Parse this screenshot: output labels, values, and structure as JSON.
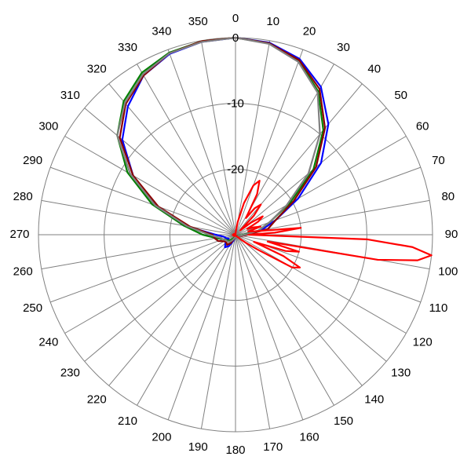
{
  "chart_data": {
    "type": "polar-line",
    "title": "",
    "angle_unit": "degrees",
    "angle_direction": "clockwise",
    "zero_direction": "top",
    "angle_ticks": [
      0,
      10,
      20,
      30,
      40,
      50,
      60,
      70,
      80,
      90,
      100,
      110,
      120,
      130,
      140,
      150,
      160,
      170,
      180,
      190,
      200,
      210,
      220,
      230,
      240,
      250,
      260,
      270,
      280,
      290,
      300,
      310,
      320,
      330,
      340,
      350
    ],
    "radial_range": [
      -30,
      0
    ],
    "radial_tick_labels": [
      {
        "value": 0,
        "label": "0"
      },
      {
        "value": -10,
        "label": "-10"
      },
      {
        "value": -20,
        "label": "-20"
      }
    ],
    "grid": true,
    "series": [
      {
        "color": "#0000ff",
        "points": [
          [
            0,
            0
          ],
          [
            10,
            -0.3
          ],
          [
            20,
            -1.5
          ],
          [
            30,
            -4.0
          ],
          [
            40,
            -8.0
          ],
          [
            50,
            -13.0
          ],
          [
            60,
            -19.0
          ],
          [
            70,
            -23.5
          ],
          [
            80,
            -26.0
          ],
          [
            90,
            -28.5
          ],
          [
            100,
            -29.2
          ],
          [
            110,
            -29.5
          ],
          [
            120,
            -29.6
          ],
          [
            130,
            -29.6
          ],
          [
            140,
            -29.6
          ],
          [
            150,
            -29.6
          ],
          [
            160,
            -29.6
          ],
          [
            170,
            -29.6
          ],
          [
            180,
            -29.7
          ],
          [
            190,
            -29.6
          ],
          [
            200,
            -29.0
          ],
          [
            210,
            -28.0
          ],
          [
            220,
            -27.5
          ],
          [
            230,
            -28.0
          ],
          [
            240,
            -28.8
          ],
          [
            250,
            -28.5
          ],
          [
            260,
            -28.2
          ],
          [
            270,
            -27.0
          ],
          [
            280,
            -22.0
          ],
          [
            290,
            -17.0
          ],
          [
            300,
            -12.0
          ],
          [
            310,
            -7.5
          ],
          [
            320,
            -4.5
          ],
          [
            330,
            -2.0
          ],
          [
            340,
            -0.7
          ],
          [
            350,
            -0.2
          ]
        ]
      },
      {
        "color": "#008000",
        "points": [
          [
            0,
            0
          ],
          [
            10,
            -0.4
          ],
          [
            20,
            -1.8
          ],
          [
            30,
            -4.8
          ],
          [
            40,
            -9.2
          ],
          [
            50,
            -14.5
          ],
          [
            60,
            -20.5
          ],
          [
            70,
            -24.5
          ],
          [
            80,
            -26.5
          ],
          [
            90,
            -28.8
          ],
          [
            100,
            -29.3
          ],
          [
            110,
            -29.6
          ],
          [
            120,
            -29.7
          ],
          [
            130,
            -29.7
          ],
          [
            140,
            -29.7
          ],
          [
            150,
            -29.7
          ],
          [
            160,
            -29.7
          ],
          [
            170,
            -29.7
          ],
          [
            180,
            -29.8
          ],
          [
            190,
            -29.7
          ],
          [
            200,
            -29.6
          ],
          [
            210,
            -29.4
          ],
          [
            220,
            -29.0
          ],
          [
            230,
            -28.6
          ],
          [
            240,
            -28.4
          ],
          [
            250,
            -28.0
          ],
          [
            260,
            -27.0
          ],
          [
            270,
            -25.0
          ],
          [
            280,
            -22.0
          ],
          [
            290,
            -16.5
          ],
          [
            300,
            -11.0
          ],
          [
            310,
            -6.5
          ],
          [
            320,
            -3.5
          ],
          [
            330,
            -1.5
          ],
          [
            340,
            -0.5
          ],
          [
            350,
            -0.1
          ]
        ]
      },
      {
        "color": "#8b0000",
        "points": [
          [
            0,
            0
          ],
          [
            10,
            -0.4
          ],
          [
            20,
            -1.7
          ],
          [
            30,
            -4.4
          ],
          [
            40,
            -8.8
          ],
          [
            50,
            -14.0
          ],
          [
            60,
            -19.8
          ],
          [
            70,
            -23.5
          ],
          [
            80,
            -25.0
          ],
          [
            90,
            -28.2
          ],
          [
            100,
            -29.0
          ],
          [
            110,
            -29.4
          ],
          [
            120,
            -29.6
          ],
          [
            130,
            -29.6
          ],
          [
            140,
            -29.6
          ],
          [
            150,
            -29.6
          ],
          [
            160,
            -29.6
          ],
          [
            170,
            -29.7
          ],
          [
            180,
            -29.7
          ],
          [
            190,
            -29.6
          ],
          [
            200,
            -29.3
          ],
          [
            210,
            -28.5
          ],
          [
            220,
            -28.0
          ],
          [
            230,
            -28.2
          ],
          [
            240,
            -28.0
          ],
          [
            250,
            -27.2
          ],
          [
            260,
            -26.8
          ],
          [
            270,
            -26.5
          ],
          [
            280,
            -23.0
          ],
          [
            290,
            -17.5
          ],
          [
            300,
            -12.0
          ],
          [
            310,
            -7.0
          ],
          [
            320,
            -4.0
          ],
          [
            330,
            -2.0
          ],
          [
            340,
            -0.6
          ],
          [
            350,
            -0.1
          ]
        ]
      },
      {
        "color": "#808080",
        "points": [
          [
            0,
            0
          ],
          [
            10,
            -0.5
          ],
          [
            20,
            -2.0
          ],
          [
            30,
            -5.0
          ],
          [
            40,
            -10.0
          ],
          [
            50,
            -15.5
          ],
          [
            60,
            -21.0
          ],
          [
            70,
            -24.5
          ],
          [
            80,
            -26.5
          ],
          [
            90,
            -28.6
          ],
          [
            100,
            -29.2
          ],
          [
            110,
            -29.5
          ],
          [
            120,
            -29.6
          ],
          [
            130,
            -29.6
          ],
          [
            140,
            -29.6
          ],
          [
            150,
            -29.6
          ],
          [
            160,
            -29.6
          ],
          [
            170,
            -29.6
          ],
          [
            180,
            -29.7
          ],
          [
            190,
            -29.6
          ],
          [
            200,
            -29.4
          ],
          [
            210,
            -29.0
          ],
          [
            220,
            -28.6
          ],
          [
            230,
            -28.4
          ],
          [
            240,
            -28.3
          ],
          [
            250,
            -28.0
          ],
          [
            260,
            -27.5
          ],
          [
            270,
            -26.0
          ],
          [
            280,
            -22.5
          ],
          [
            290,
            -17.0
          ],
          [
            300,
            -11.5
          ],
          [
            310,
            -6.5
          ],
          [
            320,
            -3.8
          ],
          [
            330,
            -1.8
          ],
          [
            340,
            -0.6
          ],
          [
            350,
            -0.2
          ]
        ]
      },
      {
        "color": "#ff0000",
        "points": [
          [
            0,
            -30
          ],
          [
            5,
            -29.5
          ],
          [
            10,
            -28
          ],
          [
            15,
            -25
          ],
          [
            20,
            -22
          ],
          [
            24,
            -21
          ],
          [
            28,
            -23
          ],
          [
            32,
            -27
          ],
          [
            36,
            -25
          ],
          [
            40,
            -24
          ],
          [
            44,
            -26
          ],
          [
            48,
            -29
          ],
          [
            52,
            -27
          ],
          [
            56,
            -25
          ],
          [
            60,
            -26
          ],
          [
            64,
            -28
          ],
          [
            68,
            -27
          ],
          [
            72,
            -26
          ],
          [
            76,
            -28
          ],
          [
            80,
            -27
          ],
          [
            84,
            -20
          ],
          [
            87,
            -24
          ],
          [
            90,
            -28
          ],
          [
            92,
            -10
          ],
          [
            94,
            -3
          ],
          [
            96,
            0
          ],
          [
            98,
            -2
          ],
          [
            100,
            -8
          ],
          [
            102,
            -25
          ],
          [
            105,
            -20
          ],
          [
            108,
            -22
          ],
          [
            111,
            -27
          ],
          [
            114,
            -22
          ],
          [
            117,
            -19
          ],
          [
            120,
            -20
          ],
          [
            124,
            -26
          ],
          [
            128,
            -28
          ],
          [
            132,
            -29
          ],
          [
            136,
            -29.5
          ],
          [
            140,
            -29.6
          ],
          [
            150,
            -29.8
          ],
          [
            160,
            -29.8
          ],
          [
            170,
            -29.9
          ],
          [
            180,
            -29.9
          ],
          [
            190,
            -29.9
          ],
          [
            200,
            -29.9
          ],
          [
            210,
            -29.8
          ],
          [
            220,
            -29.8
          ],
          [
            230,
            -29.7
          ],
          [
            240,
            -29.7
          ],
          [
            250,
            -29.7
          ],
          [
            260,
            -29.6
          ],
          [
            270,
            -29.6
          ],
          [
            280,
            -29.7
          ],
          [
            290,
            -29.7
          ],
          [
            300,
            -29.8
          ],
          [
            310,
            -29.8
          ],
          [
            320,
            -29.8
          ],
          [
            330,
            -29.9
          ],
          [
            340,
            -29.9
          ],
          [
            350,
            -30
          ],
          [
            360,
            -30
          ]
        ]
      }
    ]
  }
}
